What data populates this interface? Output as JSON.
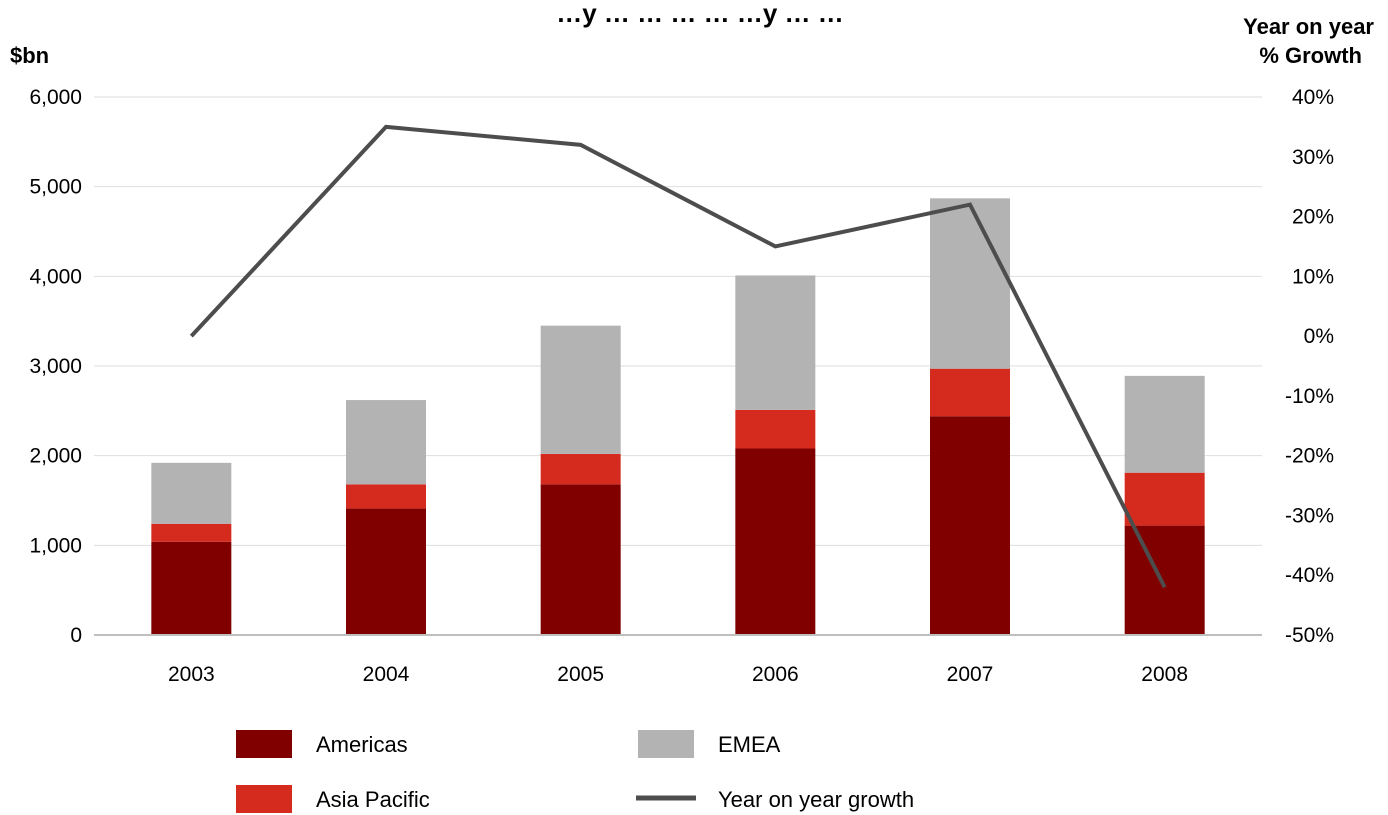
{
  "chart_data": {
    "type": "bar",
    "title": "…y … … … … …y … …",
    "left_axis_label": "$bn",
    "right_axis_label_line1": "Year on year",
    "right_axis_label_line2": "% Growth",
    "categories": [
      "2003",
      "2004",
      "2005",
      "2006",
      "2007",
      "2008"
    ],
    "series": [
      {
        "name": "Americas",
        "kind": "bar",
        "values": [
          1040,
          1410,
          1680,
          2080,
          2440,
          1220
        ]
      },
      {
        "name": "Asia Pacific",
        "kind": "bar",
        "values": [
          200,
          270,
          340,
          430,
          530,
          590
        ]
      },
      {
        "name": "EMEA",
        "kind": "bar",
        "values": [
          680,
          940,
          1430,
          1500,
          1900,
          1080
        ]
      },
      {
        "name": "Year on year growth",
        "kind": "line",
        "axis": "right",
        "values": [
          0,
          35,
          32,
          15,
          22,
          -42
        ]
      }
    ],
    "ylim": [
      0,
      6000
    ],
    "yticks": [
      "0",
      "1,000",
      "2,000",
      "3,000",
      "4,000",
      "5,000",
      "6,000"
    ],
    "y2lim": [
      -50,
      40
    ],
    "y2ticks": [
      "-50%",
      "-40%",
      "-30%",
      "-20%",
      "-10%",
      "0%",
      "10%",
      "20%",
      "30%",
      "40%"
    ],
    "grid": true,
    "legend_position": "bottom",
    "colors": {
      "Americas": "#800000",
      "Asia Pacific": "#d52b1e",
      "EMEA": "#b3b3b3",
      "Year on year growth": "#4d4d4d"
    }
  }
}
